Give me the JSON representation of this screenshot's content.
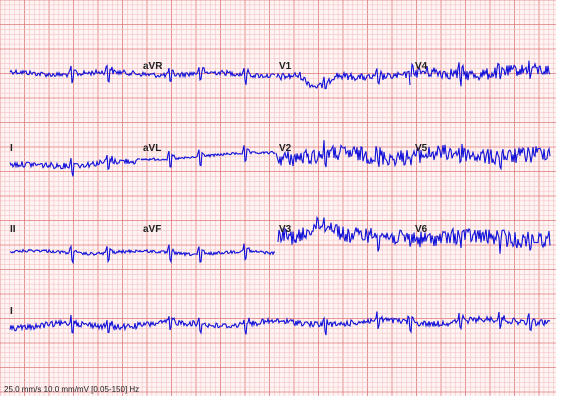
{
  "ecg": {
    "grid_colors": {
      "minor": "#f3b9b9",
      "major": "#e07a7a",
      "paper": "#fff4f4"
    },
    "trace_color": "#1010d8",
    "rows": [
      {
        "labels": [
          "",
          "aVR",
          "V1",
          "V4"
        ]
      },
      {
        "labels": [
          "I",
          "aVL",
          "V2",
          "V5"
        ]
      },
      {
        "labels": [
          "II",
          "aVF",
          "V3",
          "V6"
        ]
      },
      {
        "labels": [
          "I",
          "",
          "",
          ""
        ]
      }
    ],
    "settings_text": "25.0 mm/s 10.0 mm/mV  [0.05-150] Hz"
  }
}
